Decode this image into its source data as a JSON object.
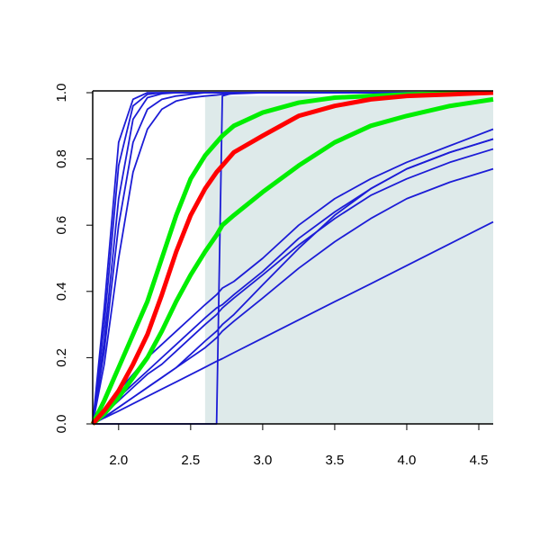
{
  "chart_data": {
    "type": "line",
    "x": [
      1.82,
      1.9,
      2.0,
      2.1,
      2.2,
      2.3,
      2.4,
      2.5,
      2.6,
      2.68,
      2.72,
      2.8,
      3.0,
      3.25,
      3.5,
      3.75,
      4.0,
      4.3,
      4.6
    ],
    "xlim": [
      1.82,
      4.6
    ],
    "ylim": [
      0,
      1
    ],
    "xticks": [
      {
        "value": 2,
        "label": "2.0"
      },
      {
        "value": 2.5,
        "label": "2.5"
      },
      {
        "value": 3,
        "label": "3.0"
      },
      {
        "value": 3.5,
        "label": "3.5"
      },
      {
        "value": 4,
        "label": "4.0"
      },
      {
        "value": 4.5,
        "label": "4.5"
      }
    ],
    "yticks": [
      {
        "value": 0,
        "label": "0.0"
      },
      {
        "value": 0.2,
        "label": "0.2"
      },
      {
        "value": 0.4,
        "label": "0.4"
      },
      {
        "value": 0.6,
        "label": "0.6"
      },
      {
        "value": 0.8,
        "label": "0.8"
      },
      {
        "value": 1,
        "label": "1.0"
      }
    ],
    "shade": {
      "xlim": [
        2.6,
        4.6
      ],
      "ylim": [
        0,
        0.99
      ],
      "color": "#deeaea"
    },
    "series": [
      {
        "color": "#1c1cd6",
        "width": 1.8,
        "values": [
          0,
          0.35,
          0.85,
          0.98,
          1,
          1,
          1,
          1,
          1,
          1,
          1,
          1,
          1,
          1,
          1,
          1,
          1,
          1,
          1
        ]
      },
      {
        "color": "#1c1cd6",
        "width": 1.8,
        "values": [
          0,
          0.3,
          0.78,
          0.96,
          0.995,
          1,
          1,
          1,
          1,
          1,
          1,
          1,
          1,
          1,
          1,
          1,
          1,
          1,
          1
        ]
      },
      {
        "color": "#1c1cd6",
        "width": 1.8,
        "values": [
          0,
          0.25,
          0.68,
          0.92,
          0.985,
          0.997,
          1,
          1,
          1,
          1,
          1,
          1,
          1,
          1,
          1,
          1,
          1,
          1,
          1
        ]
      },
      {
        "color": "#1c1cd6",
        "width": 1.8,
        "values": [
          0,
          0.22,
          0.6,
          0.85,
          0.95,
          0.98,
          0.99,
          0.995,
          1,
          1,
          1,
          1,
          1,
          1,
          1,
          1,
          1,
          1,
          1
        ]
      },
      {
        "color": "#1c1cd6",
        "width": 1.8,
        "values": [
          0,
          0.18,
          0.5,
          0.76,
          0.89,
          0.95,
          0.975,
          0.985,
          0.99,
          0.993,
          0.995,
          0.997,
          1,
          1,
          1,
          1,
          1,
          1,
          1
        ]
      },
      {
        "color": "#1c1cd6",
        "width": 1.8,
        "values": [
          0,
          0,
          0,
          0,
          0,
          0,
          0,
          0,
          0,
          0,
          0.99,
          1,
          1,
          1,
          1,
          1,
          1,
          1,
          1
        ]
      },
      {
        "color": "#1c1cd6",
        "width": 1.8,
        "values": [
          0,
          0.04,
          0.1,
          0.15,
          0.2,
          0.24,
          0.28,
          0.32,
          0.36,
          0.39,
          0.41,
          0.43,
          0.5,
          0.6,
          0.68,
          0.74,
          0.79,
          0.84,
          0.89
        ]
      },
      {
        "color": "#1c1cd6",
        "width": 1.8,
        "values": [
          0,
          0.03,
          0.08,
          0.12,
          0.16,
          0.2,
          0.24,
          0.28,
          0.32,
          0.35,
          0.36,
          0.39,
          0.46,
          0.56,
          0.64,
          0.71,
          0.77,
          0.82,
          0.86
        ]
      },
      {
        "color": "#1c1cd6",
        "width": 1.8,
        "values": [
          0,
          0.02,
          0.05,
          0.08,
          0.11,
          0.14,
          0.17,
          0.21,
          0.25,
          0.28,
          0.3,
          0.33,
          0.42,
          0.53,
          0.63,
          0.71,
          0.77,
          0.82,
          0.86
        ]
      },
      {
        "color": "#1c1cd6",
        "width": 1.8,
        "values": [
          0,
          0.03,
          0.07,
          0.11,
          0.15,
          0.18,
          0.22,
          0.26,
          0.3,
          0.33,
          0.35,
          0.38,
          0.45,
          0.54,
          0.62,
          0.69,
          0.74,
          0.79,
          0.83
        ]
      },
      {
        "color": "#1c1cd6",
        "width": 1.8,
        "values": [
          0,
          0.02,
          0.05,
          0.08,
          0.11,
          0.14,
          0.17,
          0.2,
          0.23,
          0.26,
          0.28,
          0.31,
          0.38,
          0.47,
          0.55,
          0.62,
          0.68,
          0.73,
          0.77
        ]
      },
      {
        "color": "#1c1cd6",
        "width": 1.8,
        "values": [
          0,
          0.018,
          0.039,
          0.061,
          0.083,
          0.105,
          0.127,
          0.149,
          0.171,
          0.189,
          0.197,
          0.215,
          0.259,
          0.314,
          0.369,
          0.423,
          0.478,
          0.544,
          0.61
        ]
      },
      {
        "color": "#00ee00",
        "width": 5,
        "values": [
          0,
          0.07,
          0.17,
          0.27,
          0.37,
          0.5,
          0.63,
          0.74,
          0.81,
          0.85,
          0.87,
          0.9,
          0.94,
          0.97,
          0.985,
          0.99,
          0.995,
          0.998,
          1
        ]
      },
      {
        "color": "#00ee00",
        "width": 5,
        "values": [
          0,
          0.03,
          0.08,
          0.14,
          0.2,
          0.28,
          0.37,
          0.45,
          0.52,
          0.57,
          0.6,
          0.63,
          0.7,
          0.78,
          0.85,
          0.9,
          0.93,
          0.96,
          0.98
        ]
      },
      {
        "color": "#ff0000",
        "width": 5,
        "values": [
          0,
          0.04,
          0.1,
          0.18,
          0.27,
          0.39,
          0.52,
          0.63,
          0.71,
          0.76,
          0.78,
          0.82,
          0.87,
          0.93,
          0.96,
          0.98,
          0.99,
          0.995,
          1
        ]
      }
    ]
  }
}
